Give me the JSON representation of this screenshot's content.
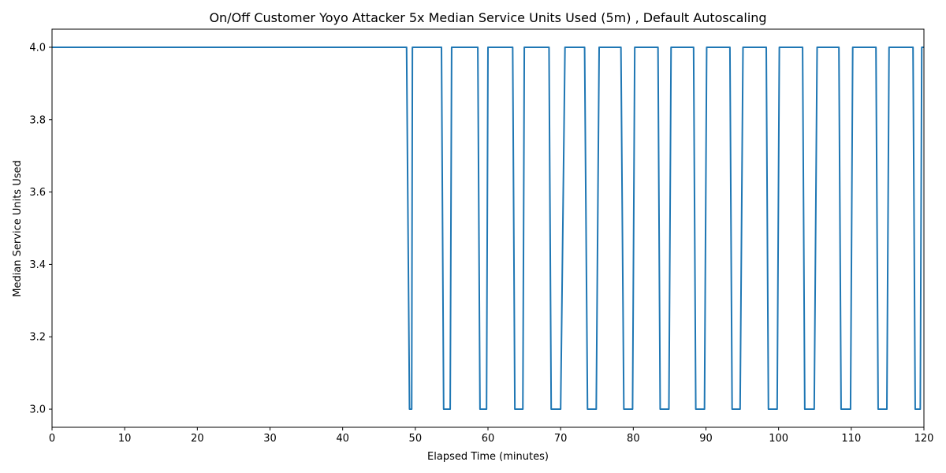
{
  "chart_data": {
    "type": "line",
    "title": "On/Off Customer Yoyo Attacker 5x Median Service Units Used (5m) , Default Autoscaling",
    "xlabel": "Elapsed Time (minutes)",
    "ylabel": "Median Service Units Used",
    "xlim": [
      0,
      120
    ],
    "ylim": [
      2.95,
      4.05
    ],
    "xticks": [
      0,
      10,
      20,
      30,
      40,
      50,
      60,
      70,
      80,
      90,
      100,
      110,
      120
    ],
    "xtick_labels": [
      "0",
      "10",
      "20",
      "30",
      "40",
      "50",
      "60",
      "70",
      "80",
      "90",
      "100",
      "110",
      "120"
    ],
    "yticks": [
      3.0,
      3.2,
      3.4,
      3.6,
      3.8,
      4.0
    ],
    "ytick_labels": [
      "3.0",
      "3.2",
      "3.4",
      "3.6",
      "3.8",
      "4.0"
    ],
    "color": "#1f77b4",
    "series": [
      {
        "name": "Median Service Units Used",
        "x": [
          0,
          48.8,
          49.2,
          49.5,
          49.6,
          53.6,
          53.9,
          54.8,
          55.0,
          58.6,
          58.9,
          59.8,
          60.0,
          63.4,
          63.7,
          64.8,
          65.0,
          68.4,
          68.7,
          70.0,
          70.6,
          73.3,
          73.7,
          74.9,
          75.3,
          78.3,
          78.7,
          79.9,
          80.2,
          83.4,
          83.7,
          84.9,
          85.2,
          88.3,
          88.6,
          89.8,
          90.1,
          93.3,
          93.6,
          94.7,
          95.1,
          98.3,
          98.6,
          99.8,
          100.1,
          103.3,
          103.6,
          104.9,
          105.3,
          108.3,
          108.6,
          109.9,
          110.2,
          113.4,
          113.7,
          114.9,
          115.2,
          118.5,
          118.8,
          119.5,
          119.7,
          120.0
        ],
        "y": [
          4.0,
          4.0,
          3.0,
          3.0,
          4.0,
          4.0,
          3.0,
          3.0,
          4.0,
          4.0,
          3.0,
          3.0,
          4.0,
          4.0,
          3.0,
          3.0,
          4.0,
          4.0,
          3.0,
          3.0,
          4.0,
          4.0,
          3.0,
          3.0,
          4.0,
          4.0,
          3.0,
          3.0,
          4.0,
          4.0,
          3.0,
          3.0,
          4.0,
          4.0,
          3.0,
          3.0,
          4.0,
          4.0,
          3.0,
          3.0,
          4.0,
          4.0,
          3.0,
          3.0,
          4.0,
          4.0,
          3.0,
          3.0,
          4.0,
          4.0,
          3.0,
          3.0,
          4.0,
          4.0,
          3.0,
          3.0,
          4.0,
          4.0,
          3.0,
          3.0,
          4.0,
          4.0
        ]
      }
    ],
    "grid": false,
    "legend": "none"
  }
}
